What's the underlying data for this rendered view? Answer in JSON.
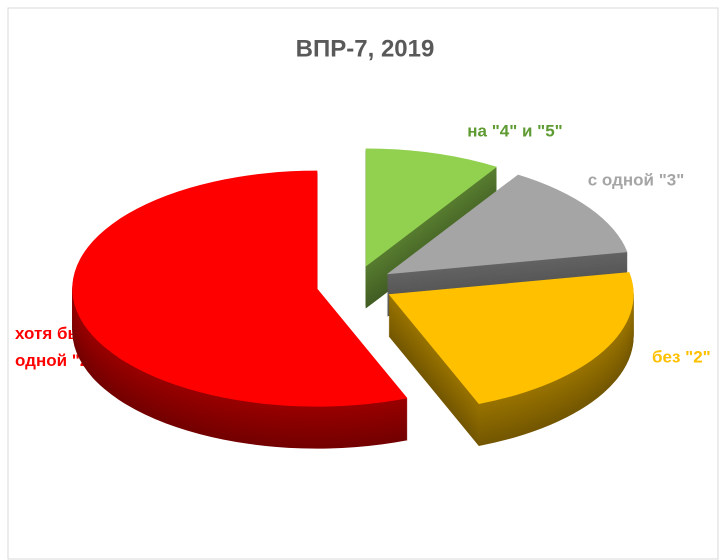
{
  "chart_data": {
    "type": "pie",
    "title": "ВПР-7,  2019",
    "categories": [
      "на \"4\" и \"5\"",
      "с одной \"3\"",
      "без \"2\"",
      "хотя бы с одной \"2\""
    ],
    "values": [
      9,
      13,
      22,
      56
    ],
    "colors": [
      "#92d050",
      "#a5a5a5",
      "#ffc000",
      "#ff0000"
    ],
    "label_colors": [
      "#5e9b32",
      "#a5a5a5",
      "#ffc000",
      "#ff0000"
    ]
  }
}
